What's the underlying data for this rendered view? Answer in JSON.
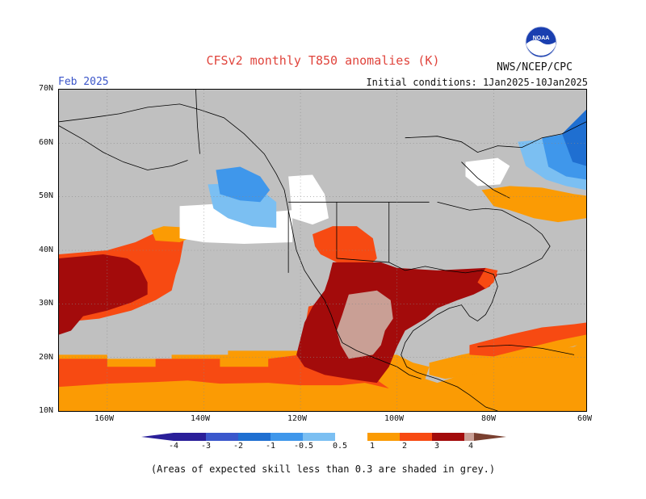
{
  "header": {
    "title": "CFSv2 monthly T850 anomalies (K)",
    "month": "Feb 2025",
    "initial_conditions": "Initial conditions: 1Jan2025-10Jan2025",
    "agency": "NWS/NCEP/CPC",
    "logo_text": "NOAA"
  },
  "map": {
    "lat_labels": [
      "70N",
      "60N",
      "50N",
      "40N",
      "30N",
      "20N",
      "10N"
    ],
    "lon_labels": [
      "160W",
      "140W",
      "120W",
      "100W",
      "80W",
      "60W"
    ],
    "grey_meaning": "low-skill"
  },
  "legend": {
    "tick_labels": [
      "-4",
      "-3",
      "-2",
      "-1",
      "-0.5",
      "0.5",
      "1",
      "2",
      "3",
      "4"
    ],
    "colors": [
      "#2a1f99",
      "#3a57cc",
      "#1f6fd1",
      "#3f97eb",
      "#7bbff2",
      "#ffffff",
      "#fb9b04",
      "#f74a12",
      "#a30b0b",
      "#c99f95",
      "#7a4030"
    ]
  },
  "footnote": "(Areas of expected skill less than 0.3 are shaded in grey.)"
}
